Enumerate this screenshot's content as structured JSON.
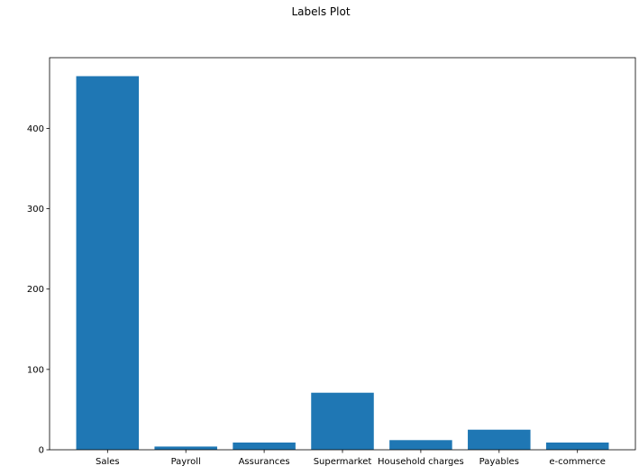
{
  "chart_data": {
    "type": "bar",
    "title": "Labels Plot",
    "xlabel": "",
    "ylabel": "",
    "categories": [
      "Sales",
      "Payroll",
      "Assurances",
      "Supermarket",
      "Household charges",
      "Payables",
      "e-commerce"
    ],
    "values": [
      465,
      4,
      9,
      71,
      12,
      25,
      9
    ],
    "ylim": [
      0,
      488
    ],
    "yticks": [
      0,
      100,
      200,
      300,
      400
    ],
    "grid": false,
    "legend": "none",
    "bar_color": "#1f77b4"
  }
}
